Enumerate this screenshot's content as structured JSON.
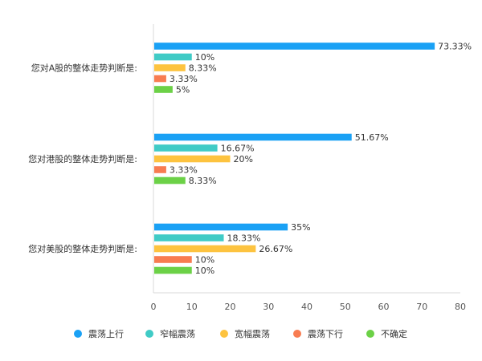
{
  "chart_data": {
    "type": "bar",
    "orientation": "horizontal",
    "categories": [
      "您对A股的整体走势判断是:",
      "您对港股的整体走势判断是:",
      "您对美股的整体走势判断是:"
    ],
    "series": [
      {
        "name": "震荡上行",
        "color": "#1aa1f5",
        "values": [
          73.33,
          51.67,
          35
        ],
        "labels": [
          "73.33%",
          "51.67%",
          "35%"
        ]
      },
      {
        "name": "窄幅震荡",
        "color": "#40cbc6",
        "values": [
          10,
          16.67,
          18.33
        ],
        "labels": [
          "10%",
          "16.67%",
          "18.33%"
        ]
      },
      {
        "name": "宽幅震荡",
        "color": "#fdc33f",
        "values": [
          8.33,
          20,
          26.67
        ],
        "labels": [
          "8.33%",
          "20%",
          "26.67%"
        ]
      },
      {
        "name": "震荡下行",
        "color": "#f87c51",
        "values": [
          3.33,
          3.33,
          10
        ],
        "labels": [
          "3.33%",
          "3.33%",
          "10%"
        ]
      },
      {
        "name": "不确定",
        "color": "#6cd147",
        "values": [
          5,
          8.33,
          10
        ],
        "labels": [
          "5%",
          "8.33%",
          "10%"
        ]
      }
    ],
    "xlim": [
      0,
      80
    ],
    "xticks": [
      "0",
      "10",
      "20",
      "30",
      "40",
      "50",
      "60",
      "70",
      "80"
    ],
    "legend_position": "bottom",
    "grid": false
  }
}
